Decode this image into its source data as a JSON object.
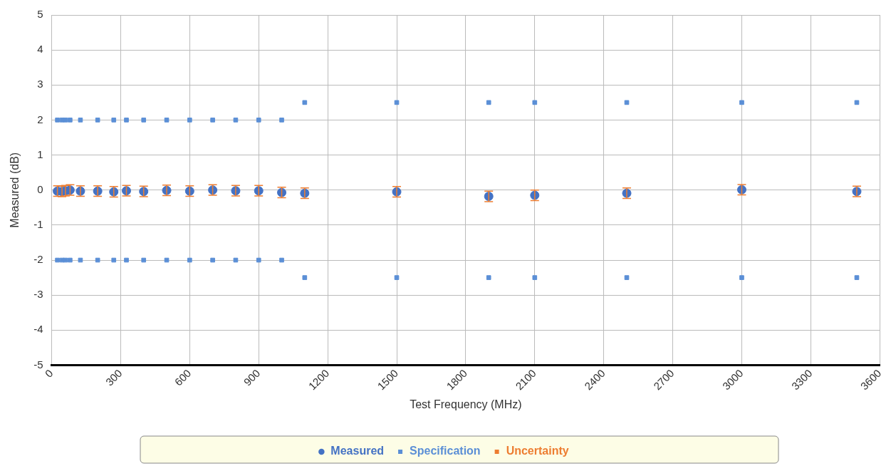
{
  "chart_data": {
    "type": "scatter",
    "xlabel": "Test Frequency (MHz)",
    "ylabel": "Measured (dB)",
    "x": [
      25,
      45,
      60,
      80,
      125,
      200,
      270,
      325,
      400,
      500,
      600,
      700,
      800,
      900,
      1000,
      1100,
      1500,
      1900,
      2100,
      2500,
      3000,
      3500
    ],
    "series": [
      {
        "name": "Measured",
        "color": "#4472c4",
        "marker": "circle",
        "values": [
          -0.03,
          -0.04,
          -0.02,
          0,
          -0.03,
          -0.03,
          -0.05,
          -0.02,
          -0.04,
          -0.01,
          -0.03,
          0,
          -0.02,
          -0.02,
          -0.07,
          -0.09,
          -0.05,
          -0.18,
          -0.15,
          -0.09,
          0.01,
          -0.04
        ]
      },
      {
        "name": "Specification",
        "color": "#5b8fd6",
        "marker": "square",
        "values": [
          2,
          2,
          2,
          2,
          2,
          2,
          2,
          2,
          2,
          2,
          2,
          2,
          2,
          2,
          2,
          2.5,
          2.5,
          2.5,
          2.5,
          2.5,
          2.5,
          2.5
        ]
      },
      {
        "name": "Uncertainty",
        "color": "#ed7d31",
        "values": [
          -0.03,
          -0.04,
          -0.02,
          0,
          -0.03,
          -0.03,
          -0.05,
          -0.02,
          -0.04,
          -0.01,
          -0.03,
          0,
          -0.02,
          -0.02,
          -0.07,
          -0.09,
          -0.05,
          -0.18,
          -0.15,
          -0.09,
          0.01,
          -0.04
        ],
        "errors": [
          0.15,
          0.15,
          0.15,
          0.15,
          0.15,
          0.15,
          0.15,
          0.15,
          0.15,
          0.15,
          0.15,
          0.15,
          0.15,
          0.15,
          0.15,
          0.15,
          0.15,
          0.15,
          0.15,
          0.15,
          0.15,
          0.15
        ]
      },
      {
        "color": "#5b8fd6",
        "marker": "square",
        "values": [
          -2,
          -2,
          -2,
          -2,
          -2,
          -2,
          -2,
          -2,
          -2,
          -2,
          -2,
          -2,
          -2,
          -2,
          -2,
          -2.5,
          -2.5,
          -2.5,
          -2.5,
          -2.5,
          -2.5,
          -2.5
        ]
      }
    ],
    "xlim": [
      0,
      3600
    ],
    "xticks": [
      0,
      300,
      600,
      900,
      1200,
      1500,
      1800,
      2100,
      2400,
      2700,
      3000,
      3300,
      3600
    ],
    "ylim": [
      -5,
      5
    ],
    "yticks": [
      -5,
      -4,
      -3,
      -2,
      -1,
      0,
      1,
      2,
      3,
      4,
      5
    ],
    "grid": true,
    "legend": "bottom"
  }
}
